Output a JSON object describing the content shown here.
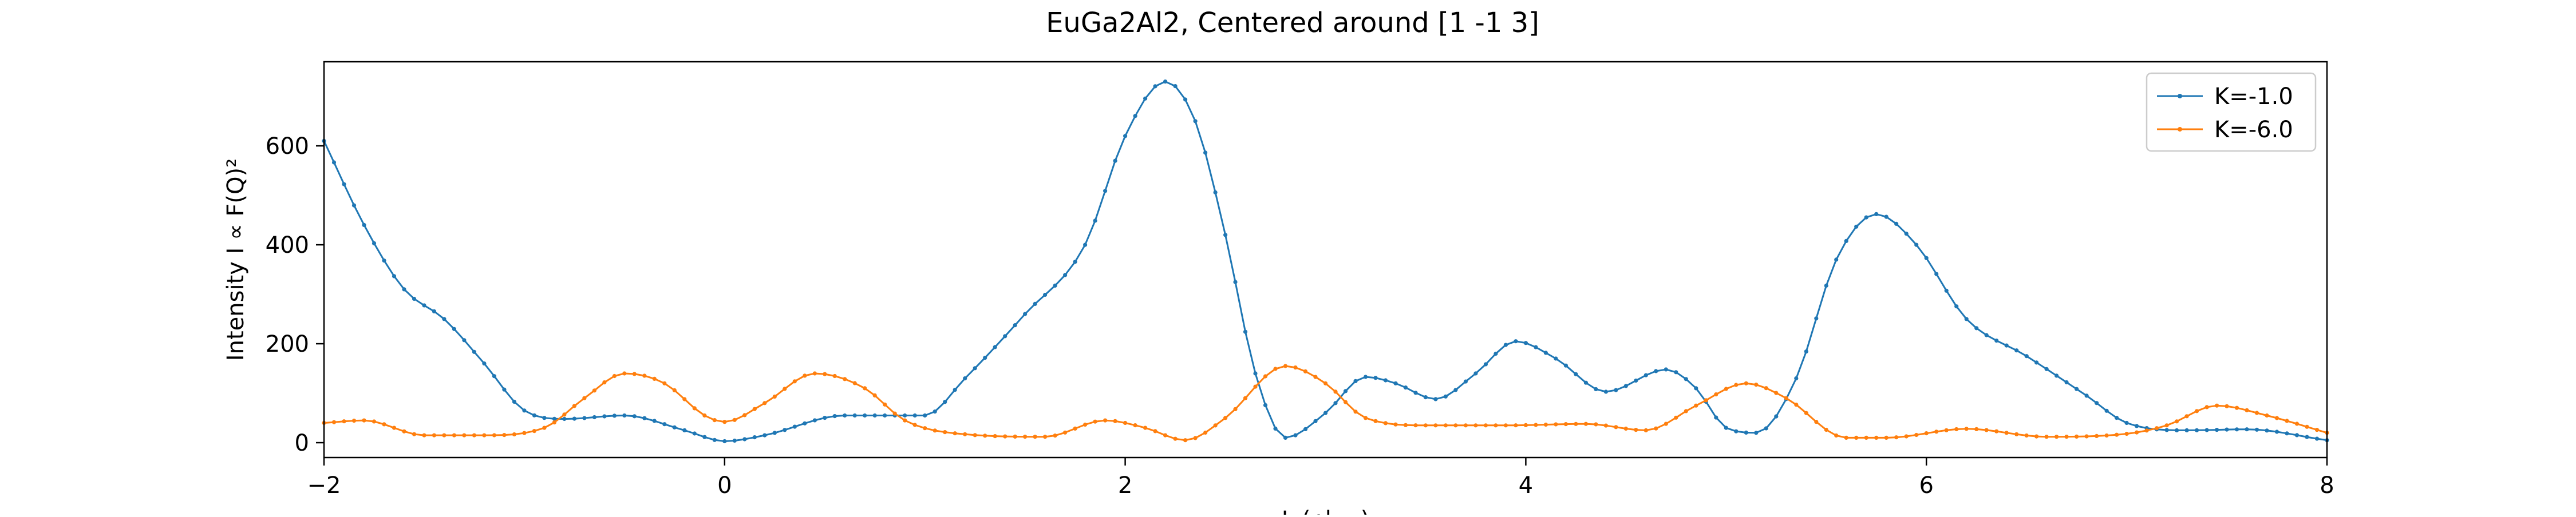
{
  "chart_data": {
    "type": "line",
    "title": "EuGa2Al2, Centered around [1 -1 3]",
    "xlabel": "L (r.l.u.)",
    "ylabel": "Intensity I ∝ F(Q)²",
    "xlim": [
      -2,
      8
    ],
    "ylim": [
      -30,
      770
    ],
    "x_ticks": [
      -2,
      0,
      2,
      4,
      6,
      8
    ],
    "y_ticks": [
      0,
      200,
      400,
      600
    ],
    "grid": false,
    "legend_position": "top-right",
    "series": [
      {
        "name": "K=-1.0",
        "color": "#1f77b4",
        "knots": [
          [
            -2.0,
            610
          ],
          [
            -1.8,
            440
          ],
          [
            -1.6,
            310
          ],
          [
            -1.4,
            250
          ],
          [
            -1.2,
            160
          ],
          [
            -1.0,
            65
          ],
          [
            -0.8,
            48
          ],
          [
            -0.5,
            55
          ],
          [
            -0.2,
            25
          ],
          [
            0.0,
            3
          ],
          [
            0.2,
            15
          ],
          [
            0.6,
            55
          ],
          [
            1.0,
            55
          ],
          [
            1.2,
            130
          ],
          [
            1.5,
            260
          ],
          [
            1.8,
            400
          ],
          [
            2.0,
            620
          ],
          [
            2.2,
            730
          ],
          [
            2.35,
            650
          ],
          [
            2.5,
            420
          ],
          [
            2.65,
            140
          ],
          [
            2.8,
            10
          ],
          [
            3.0,
            60
          ],
          [
            3.2,
            133
          ],
          [
            3.35,
            120
          ],
          [
            3.55,
            88
          ],
          [
            3.75,
            140
          ],
          [
            3.95,
            205
          ],
          [
            4.15,
            170
          ],
          [
            4.4,
            103
          ],
          [
            4.7,
            148
          ],
          [
            4.85,
            110
          ],
          [
            5.0,
            30
          ],
          [
            5.15,
            20
          ],
          [
            5.35,
            130
          ],
          [
            5.55,
            370
          ],
          [
            5.75,
            462
          ],
          [
            5.95,
            400
          ],
          [
            6.2,
            250
          ],
          [
            6.5,
            175
          ],
          [
            6.8,
            95
          ],
          [
            7.0,
            40
          ],
          [
            7.3,
            25
          ],
          [
            7.6,
            27
          ],
          [
            8.0,
            5
          ]
        ]
      },
      {
        "name": "K=-6.0",
        "color": "#ff7f0e",
        "knots": [
          [
            -2.0,
            40
          ],
          [
            -1.8,
            45
          ],
          [
            -1.5,
            15
          ],
          [
            -1.2,
            15
          ],
          [
            -0.9,
            30
          ],
          [
            -0.7,
            90
          ],
          [
            -0.5,
            140
          ],
          [
            -0.3,
            120
          ],
          [
            -0.1,
            55
          ],
          [
            0.0,
            42
          ],
          [
            0.2,
            80
          ],
          [
            0.45,
            140
          ],
          [
            0.7,
            110
          ],
          [
            0.9,
            45
          ],
          [
            1.2,
            17
          ],
          [
            1.6,
            12
          ],
          [
            1.9,
            45
          ],
          [
            2.1,
            30
          ],
          [
            2.3,
            5
          ],
          [
            2.5,
            50
          ],
          [
            2.8,
            155
          ],
          [
            3.0,
            120
          ],
          [
            3.2,
            50
          ],
          [
            3.5,
            35
          ],
          [
            3.9,
            35
          ],
          [
            4.3,
            38
          ],
          [
            4.6,
            25
          ],
          [
            4.85,
            75
          ],
          [
            5.1,
            120
          ],
          [
            5.3,
            90
          ],
          [
            5.6,
            10
          ],
          [
            5.8,
            10
          ],
          [
            6.2,
            28
          ],
          [
            6.6,
            12
          ],
          [
            7.0,
            18
          ],
          [
            7.2,
            35
          ],
          [
            7.45,
            75
          ],
          [
            7.7,
            55
          ],
          [
            8.0,
            20
          ]
        ]
      }
    ]
  }
}
